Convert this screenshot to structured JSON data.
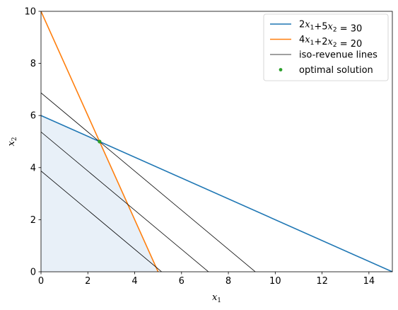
{
  "chart_data": {
    "type": "line",
    "xlabel": "x",
    "xlabel_sub": "1",
    "ylabel": "x",
    "ylabel_sub": "2",
    "xlim": [
      0,
      15
    ],
    "ylim": [
      0,
      10
    ],
    "xticks": [
      0,
      2,
      4,
      6,
      8,
      10,
      12,
      14
    ],
    "yticks": [
      0,
      2,
      4,
      6,
      8,
      10
    ],
    "grid": false,
    "legend_position": "top-right",
    "feasible_region": {
      "points": [
        [
          0,
          0
        ],
        [
          0,
          6
        ],
        [
          2.5,
          5
        ],
        [
          5,
          0
        ]
      ],
      "color": "#e8f0f8"
    },
    "series": [
      {
        "id": "constraint-1",
        "legend": {
          "pre": "",
          "parts": [
            [
              "2",
              "x",
              "1"
            ],
            [
              "+5",
              "x",
              "2"
            ]
          ],
          "rhs": " = 30"
        },
        "x": [
          0,
          15
        ],
        "y": [
          6,
          0
        ],
        "color": "#1f77b4",
        "width": 1.6
      },
      {
        "id": "constraint-2",
        "legend": {
          "pre": "",
          "parts": [
            [
              "4",
              "x",
              "1"
            ],
            [
              "+2",
              "x",
              "2"
            ]
          ],
          "rhs": " = 20"
        },
        "x": [
          0,
          5
        ],
        "y": [
          10,
          0
        ],
        "color": "#ff7f0e",
        "width": 1.6
      },
      {
        "id": "iso-revenue",
        "label": "iso-revenue lines",
        "color": "#000000",
        "width": 0.8,
        "lines": [
          {
            "x": [
              0,
              9.15
            ],
            "y": [
              6.87,
              0
            ]
          },
          {
            "x": [
              0,
              7.15
            ],
            "y": [
              5.37,
              0
            ]
          },
          {
            "x": [
              0,
              5.15
            ],
            "y": [
              3.87,
              0
            ]
          }
        ]
      },
      {
        "id": "optimal",
        "label": "optimal solution",
        "type": "scatter",
        "color": "#2ca02c",
        "points": [
          [
            2.5,
            5
          ]
        ]
      }
    ]
  }
}
